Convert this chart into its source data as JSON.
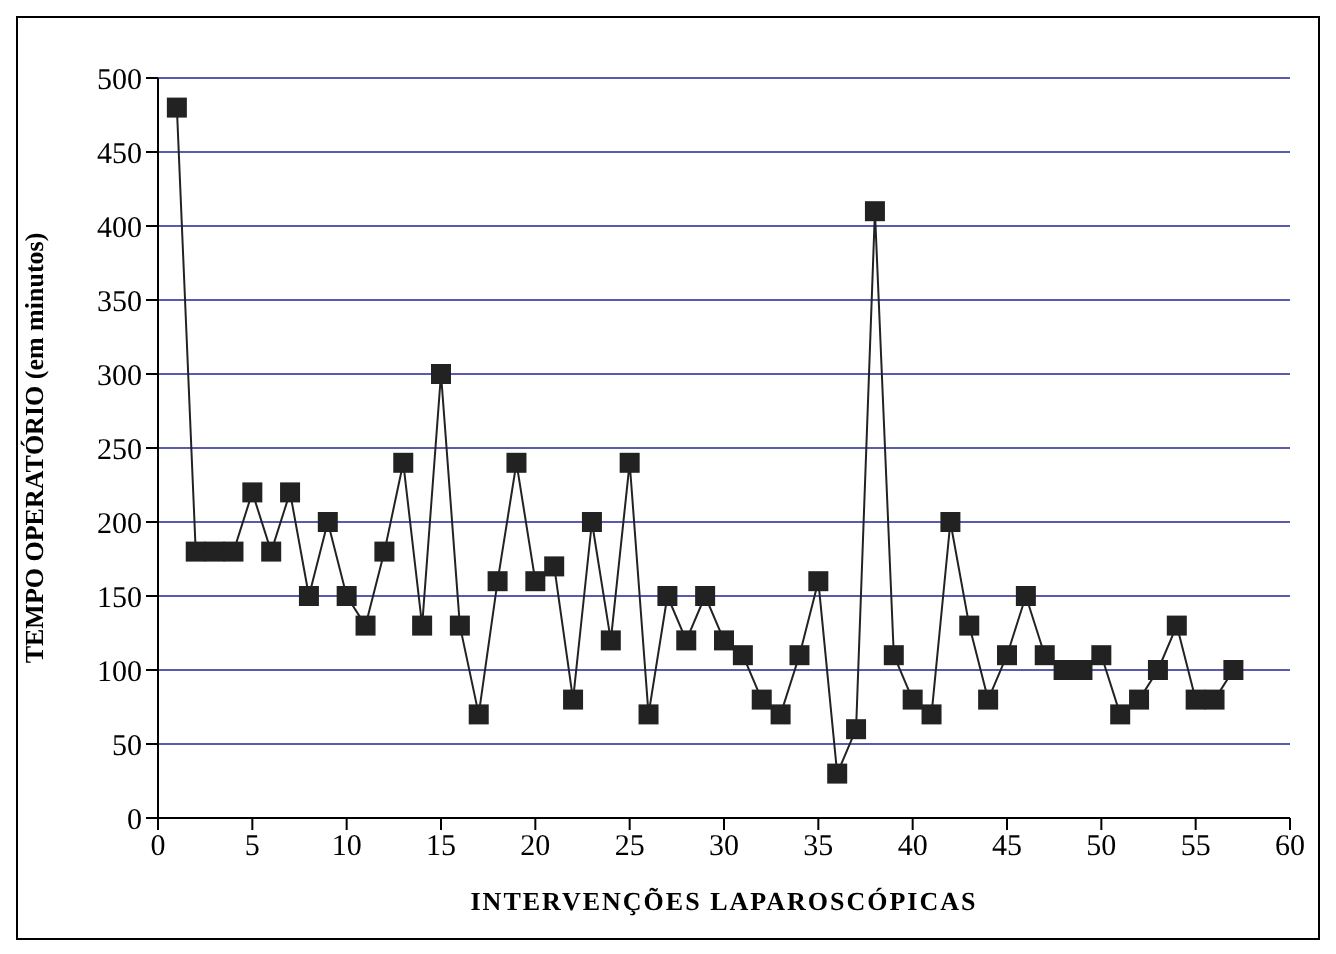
{
  "chart_data": {
    "type": "line",
    "xlabel": "INTERVENÇÕES LAPAROSCÓPICAS",
    "ylabel": "TEMPO OPERATÓRIO (em minutos)",
    "x": [
      1,
      2,
      3,
      4,
      5,
      6,
      7,
      8,
      9,
      10,
      11,
      12,
      13,
      14,
      15,
      16,
      17,
      18,
      19,
      20,
      21,
      22,
      23,
      24,
      25,
      26,
      27,
      28,
      29,
      30,
      31,
      32,
      33,
      34,
      35,
      36,
      37,
      38,
      39,
      40,
      41,
      42,
      43,
      44,
      45,
      46,
      47,
      48,
      49,
      50,
      51,
      52,
      53,
      54,
      55,
      56,
      57
    ],
    "series": [
      {
        "color": "#222222",
        "values": [
          480,
          180,
          180,
          180,
          220,
          180,
          220,
          150,
          200,
          150,
          130,
          180,
          240,
          130,
          300,
          130,
          70,
          160,
          240,
          160,
          170,
          80,
          200,
          120,
          240,
          70,
          150,
          120,
          150,
          120,
          110,
          80,
          70,
          110,
          160,
          30,
          60,
          410,
          110,
          80,
          70,
          200,
          130,
          80,
          110,
          150,
          110,
          100,
          100,
          110,
          70,
          80,
          100,
          130,
          80,
          80,
          100
        ]
      }
    ],
    "xlim": [
      0,
      60
    ],
    "xticks": [
      0,
      5,
      10,
      15,
      20,
      25,
      30,
      35,
      40,
      45,
      50,
      55,
      60
    ],
    "ylim": [
      0,
      500
    ],
    "yticks": [
      0,
      50,
      100,
      150,
      200,
      250,
      300,
      350,
      400,
      450,
      500
    ],
    "grid": "y",
    "marker": "square",
    "line_style": "solid",
    "legend": false
  }
}
